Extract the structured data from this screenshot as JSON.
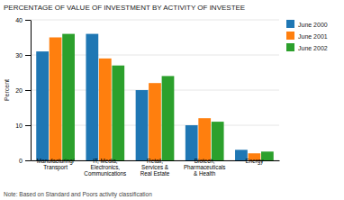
{
  "chart_data": {
    "type": "bar",
    "title": "PERCENTAGE OF VALUE OF INVESTMENT BY ACTIVITY OF INVESTEE",
    "ylabel": "Percent",
    "annotations": [
      "Note: Based on Standard and Poors activity classification"
    ],
    "categories": [
      "Manufacturing/\nTransport",
      "IT, Media,\nElectronics,\nCommunications",
      "Retail,\nServices &\nReal Estate",
      "Biotech,\nPharmaceuticals\n& Health",
      "Energy"
    ],
    "series": [
      {
        "name": "June 2000",
        "values": [
          31,
          36,
          20,
          10,
          3
        ]
      },
      {
        "name": "June 2001",
        "values": [
          35,
          29,
          22,
          12,
          2
        ]
      },
      {
        "name": "June 2002",
        "values": [
          36,
          27,
          24,
          11,
          2.5
        ]
      }
    ],
    "ylim": [
      0,
      40
    ],
    "yticks": [
      0,
      10,
      20,
      30,
      40
    ],
    "grid": true,
    "legend": "right"
  }
}
